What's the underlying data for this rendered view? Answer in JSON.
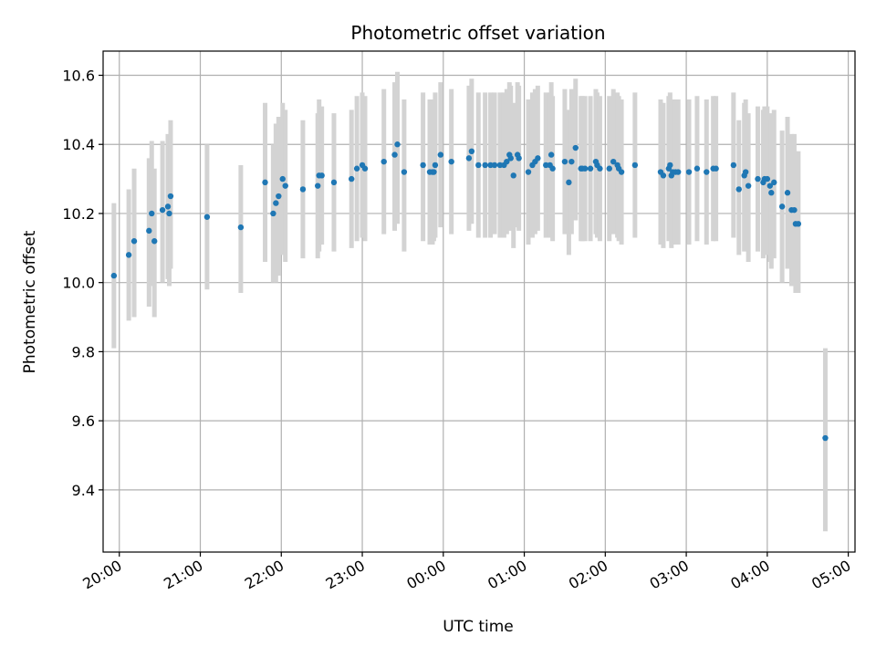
{
  "chart_data": {
    "type": "scatter",
    "title": "Photometric offset variation",
    "xlabel": "UTC time",
    "ylabel": "Photometric offset",
    "grid": true,
    "xlim": [
      "19:48",
      "05:05"
    ],
    "ylim": [
      9.22,
      10.67
    ],
    "xticks": [
      "20:00",
      "21:00",
      "22:00",
      "23:00",
      "00:00",
      "01:00",
      "02:00",
      "03:00",
      "04:00",
      "05:00"
    ],
    "yticks": [
      "9.4",
      "9.6",
      "9.8",
      "10.0",
      "10.2",
      "10.4",
      "10.6"
    ],
    "colors": {
      "point": "#1f77b4",
      "error_bar": "#d3d3d3"
    },
    "series": [
      {
        "x": [
          "19:56",
          "20:07",
          "20:11",
          "20:22",
          "20:24",
          "20:26",
          "20:32",
          "20:36",
          "20:37",
          "20:38",
          "21:05",
          "21:30",
          "21:48",
          "21:54",
          "21:56",
          "21:58",
          "22:01",
          "22:03",
          "22:16",
          "22:27",
          "22:28",
          "22:30",
          "22:39",
          "22:52",
          "22:56",
          "23:00",
          "23:02",
          "23:16",
          "23:24",
          "23:26",
          "23:31",
          "23:45",
          "23:50",
          "23:52",
          "23:53",
          "23:54",
          "23:58",
          "00:06",
          "00:19",
          "00:21",
          "00:26",
          "00:31",
          "00:35",
          "00:38",
          "00:42",
          "00:45",
          "00:47",
          "00:49",
          "00:50",
          "00:52",
          "00:55",
          "00:56",
          "01:03",
          "01:06",
          "01:08",
          "01:10",
          "01:16",
          "01:19",
          "01:20",
          "01:21",
          "01:30",
          "01:33",
          "01:35",
          "01:38",
          "01:42",
          "01:43",
          "01:45",
          "01:49",
          "01:53",
          "01:54",
          "01:56",
          "02:03",
          "02:06",
          "02:09",
          "02:10",
          "02:12",
          "02:22",
          "02:41",
          "02:43",
          "02:47",
          "02:48",
          "02:49",
          "02:50",
          "02:52",
          "02:54",
          "03:02",
          "03:08",
          "03:15",
          "03:20",
          "03:22",
          "03:35",
          "03:39",
          "03:43",
          "03:44",
          "03:46",
          "03:53",
          "03:57",
          "03:58",
          "04:00",
          "04:02",
          "04:03",
          "04:05",
          "04:11",
          "04:15",
          "04:18",
          "04:20",
          "04:21",
          "04:23",
          "04:43"
        ],
        "y": [
          10.02,
          10.08,
          10.12,
          10.15,
          10.2,
          10.12,
          10.21,
          10.22,
          10.2,
          10.25,
          10.19,
          10.16,
          10.29,
          10.2,
          10.23,
          10.25,
          10.3,
          10.28,
          10.27,
          10.28,
          10.31,
          10.31,
          10.29,
          10.3,
          10.33,
          10.34,
          10.33,
          10.35,
          10.37,
          10.4,
          10.32,
          10.34,
          10.32,
          10.32,
          10.32,
          10.34,
          10.37,
          10.35,
          10.36,
          10.38,
          10.34,
          10.34,
          10.34,
          10.34,
          10.34,
          10.34,
          10.35,
          10.37,
          10.36,
          10.31,
          10.37,
          10.36,
          10.32,
          10.34,
          10.35,
          10.36,
          10.34,
          10.34,
          10.37,
          10.33,
          10.35,
          10.29,
          10.35,
          10.39,
          10.33,
          10.33,
          10.33,
          10.33,
          10.35,
          10.34,
          10.33,
          10.33,
          10.35,
          10.34,
          10.33,
          10.32,
          10.34,
          10.32,
          10.31,
          10.33,
          10.34,
          10.31,
          10.32,
          10.32,
          10.32,
          10.32,
          10.33,
          10.32,
          10.33,
          10.33,
          10.34,
          10.27,
          10.31,
          10.32,
          10.28,
          10.3,
          10.29,
          10.3,
          10.3,
          10.28,
          10.26,
          10.29,
          10.22,
          10.26,
          10.21,
          10.21,
          10.17,
          10.17,
          9.55
        ],
        "err_low": [
          9.81,
          9.89,
          9.9,
          9.93,
          9.99,
          9.9,
          10.0,
          10.01,
          9.99,
          10.04,
          9.98,
          9.97,
          10.06,
          10.0,
          10.0,
          10.02,
          10.08,
          10.06,
          10.07,
          10.07,
          10.09,
          10.11,
          10.09,
          10.1,
          10.12,
          10.13,
          10.12,
          10.14,
          10.15,
          10.17,
          10.09,
          10.12,
          10.11,
          10.11,
          10.12,
          10.13,
          10.16,
          10.14,
          10.15,
          10.17,
          10.13,
          10.13,
          10.13,
          10.14,
          10.13,
          10.13,
          10.14,
          10.16,
          10.15,
          10.1,
          10.16,
          10.15,
          10.11,
          10.13,
          10.14,
          10.15,
          10.13,
          10.13,
          10.16,
          10.12,
          10.14,
          10.08,
          10.14,
          10.18,
          10.12,
          10.12,
          10.12,
          10.12,
          10.14,
          10.13,
          10.12,
          10.12,
          10.14,
          10.13,
          10.12,
          10.11,
          10.13,
          10.11,
          10.1,
          10.12,
          10.13,
          10.1,
          10.11,
          10.11,
          10.11,
          10.11,
          10.12,
          10.11,
          10.12,
          10.12,
          10.13,
          10.08,
          10.09,
          10.11,
          10.06,
          10.09,
          10.07,
          10.09,
          10.08,
          10.06,
          10.04,
          10.07,
          10.0,
          10.04,
          9.99,
          9.99,
          9.97,
          9.97,
          9.28
        ],
        "err_high": [
          10.23,
          10.27,
          10.33,
          10.36,
          10.41,
          10.33,
          10.41,
          10.43,
          10.41,
          10.47,
          10.4,
          10.34,
          10.52,
          10.4,
          10.46,
          10.48,
          10.52,
          10.5,
          10.47,
          10.49,
          10.53,
          10.51,
          10.49,
          10.5,
          10.54,
          10.55,
          10.54,
          10.56,
          10.58,
          10.61,
          10.53,
          10.55,
          10.53,
          10.53,
          10.53,
          10.55,
          10.58,
          10.56,
          10.57,
          10.59,
          10.55,
          10.55,
          10.55,
          10.55,
          10.55,
          10.55,
          10.56,
          10.58,
          10.57,
          10.52,
          10.58,
          10.57,
          10.53,
          10.55,
          10.56,
          10.57,
          10.55,
          10.55,
          10.58,
          10.54,
          10.56,
          10.5,
          10.56,
          10.59,
          10.54,
          10.54,
          10.54,
          10.54,
          10.56,
          10.55,
          10.54,
          10.54,
          10.56,
          10.55,
          10.54,
          10.53,
          10.55,
          10.53,
          10.52,
          10.54,
          10.55,
          10.52,
          10.53,
          10.53,
          10.53,
          10.53,
          10.54,
          10.53,
          10.54,
          10.54,
          10.55,
          10.47,
          10.52,
          10.53,
          10.49,
          10.51,
          10.5,
          10.51,
          10.51,
          10.49,
          10.47,
          10.5,
          10.44,
          10.48,
          10.43,
          10.43,
          10.38,
          10.38,
          9.81
        ]
      }
    ]
  }
}
